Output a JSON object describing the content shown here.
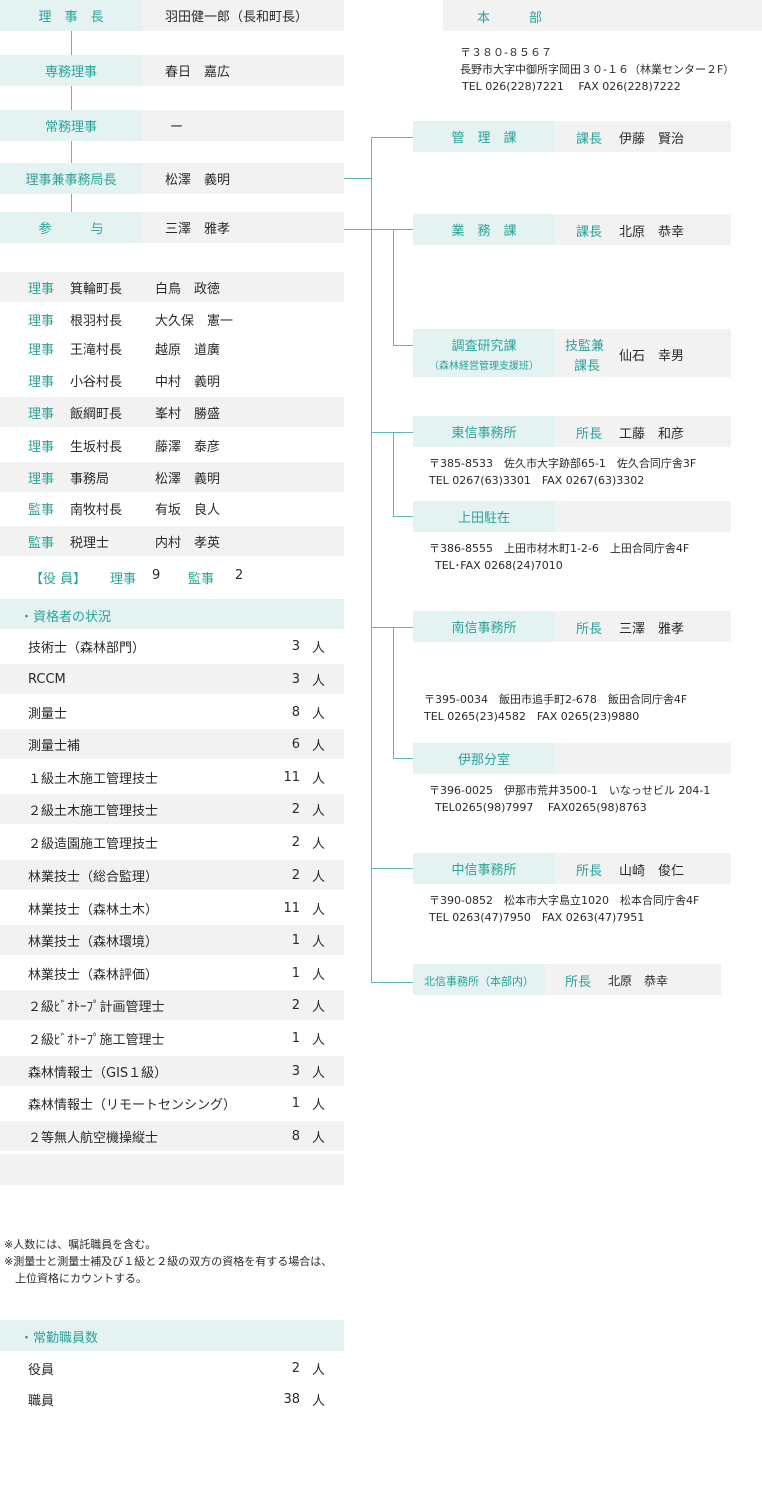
{
  "executives": [
    {
      "title": "理　事　長",
      "name": "羽田健一郎（長和町長）"
    },
    {
      "title": "専務理事",
      "name": "春日　嘉広"
    },
    {
      "title": "常務理事",
      "name": "ー"
    },
    {
      "title": "理事兼事務局長",
      "name": "松澤　義明"
    },
    {
      "title": "参　　　与",
      "name": "三澤　雅孝"
    }
  ],
  "directors": [
    {
      "role": "理事",
      "org": "箕輪町長",
      "name": "白鳥　政徳"
    },
    {
      "role": "理事",
      "org": "根羽村長",
      "name": "大久保　憲一"
    },
    {
      "role": "理事",
      "org": "王滝村長",
      "name": "越原　道廣"
    },
    {
      "role": "理事",
      "org": "小谷村長",
      "name": "中村　義明"
    },
    {
      "role": "理事",
      "org": "飯綱町長",
      "name": "峯村　勝盛"
    },
    {
      "role": "理事",
      "org": "生坂村長",
      "name": "藤澤　泰彦"
    },
    {
      "role": "理事",
      "org": "事務局",
      "name": "松澤　義明"
    },
    {
      "role": "監事",
      "org": "南牧村長",
      "name": "有坂　良人"
    },
    {
      "role": "監事",
      "org": "税理士",
      "name": "内村　孝英"
    }
  ],
  "officers_summary": {
    "label": "【役 員】",
    "riji": "理事",
    "riji_count": "9",
    "kanji": "監事",
    "kanji_count": "2"
  },
  "qual_heading": "・資格者の状況",
  "qualifications": [
    {
      "name": "技術士（森林部門）",
      "count": "3",
      "unit": "人"
    },
    {
      "name": "RCCM",
      "count": "3",
      "unit": "人"
    },
    {
      "name": "測量士",
      "count": "8",
      "unit": "人"
    },
    {
      "name": "測量士補",
      "count": "6",
      "unit": "人"
    },
    {
      "name": "１級土木施工管理技士",
      "count": "11",
      "unit": "人"
    },
    {
      "name": "２級土木施工管理技士",
      "count": "2",
      "unit": "人"
    },
    {
      "name": "２級造園施工管理技士",
      "count": "2",
      "unit": "人"
    },
    {
      "name": "林業技士（総合監理）",
      "count": "2",
      "unit": "人"
    },
    {
      "name": "林業技士（森林土木）",
      "count": "11",
      "unit": "人"
    },
    {
      "name": "林業技士（森林環境）",
      "count": "1",
      "unit": "人"
    },
    {
      "name": "林業技士（森林評価）",
      "count": "1",
      "unit": "人"
    },
    {
      "name": "２級ﾋﾞｵﾄｰﾌﾟ計画管理士",
      "count": "2",
      "unit": "人"
    },
    {
      "name": "２級ﾋﾞｵﾄｰﾌﾟ施工管理士",
      "count": "1",
      "unit": "人"
    },
    {
      "name": "森林情報士（GIS１級）",
      "count": "3",
      "unit": "人"
    },
    {
      "name": "森林情報士（リモートセンシング）",
      "count": "1",
      "unit": "人"
    },
    {
      "name": "２等無人航空機操縦士",
      "count": "8",
      "unit": "人"
    }
  ],
  "notes": [
    "※人数には、嘱託職員を含む。",
    "※測量士と測量士補及び１級と２級の双方の資格を有する場合は、",
    "　上位資格にカウントする。"
  ],
  "staff_heading": "・常勤職員数",
  "staff": [
    {
      "name": "役員",
      "count": "2",
      "unit": "人"
    },
    {
      "name": "職員",
      "count": "38",
      "unit": "人"
    }
  ],
  "headquarters": {
    "title": "本　　　部",
    "postal": "〒３８０-８５６７",
    "address": "長野市大字中御所字岡田３０-１６（林業センター２F）",
    "tel": "TEL 026(228)7221　 FAX 026(228)7222"
  },
  "units": {
    "kanri": {
      "label": "管　理　課",
      "role": "課長",
      "name": "伊藤　賢治"
    },
    "gyomu": {
      "label": "業　務　課",
      "role": "課長",
      "name": "北原　恭幸"
    },
    "chosa": {
      "label": "調査研究課",
      "sub": "（森林経営管理支援班）",
      "role1": "技監兼",
      "role2": "課長",
      "name": "仙石　幸男"
    },
    "toshin": {
      "label": "東信事務所",
      "role": "所長",
      "name": "工藤　和彦",
      "addr": "〒385-8533　佐久市大字跡部65-1　佐久合同庁舎3F",
      "tel": "TEL 0267(63)3301　FAX 0267(63)3302"
    },
    "ueda": {
      "label": "上田駐在",
      "addr": "〒386-8555　上田市材木町1-2-6　上田合同庁舎4F",
      "tel": "TEL･FAX 0268(24)7010"
    },
    "nanshin": {
      "label": "南信事務所",
      "role": "所長",
      "name": "三澤　雅孝",
      "addr": "〒395-0034　飯田市追手町2-678　飯田合同庁舎4F",
      "tel": "TEL 0265(23)4582　FAX 0265(23)9880"
    },
    "ina": {
      "label": "伊那分室",
      "addr": "〒396-0025　伊那市荒井3500-1　いなっせビル 204-1",
      "tel": "TEL0265(98)7997　 FAX0265(98)8763"
    },
    "chushin": {
      "label": "中信事務所",
      "role": "所長",
      "name": "山崎　俊仁",
      "addr": "〒390-0852　松本市大字島立1020　松本合同庁舎4F",
      "tel": "TEL 0263(47)7950　FAX 0263(47)7951"
    },
    "hokushin": {
      "label": "北信事務所（本部内）",
      "role": "所長",
      "name": "北原　恭幸"
    }
  },
  "colors": {
    "teal": "#2aa39a",
    "label_bg": "#e4f2f2",
    "row_bg": "#f2f2f2",
    "line": "#5fb8b2"
  }
}
